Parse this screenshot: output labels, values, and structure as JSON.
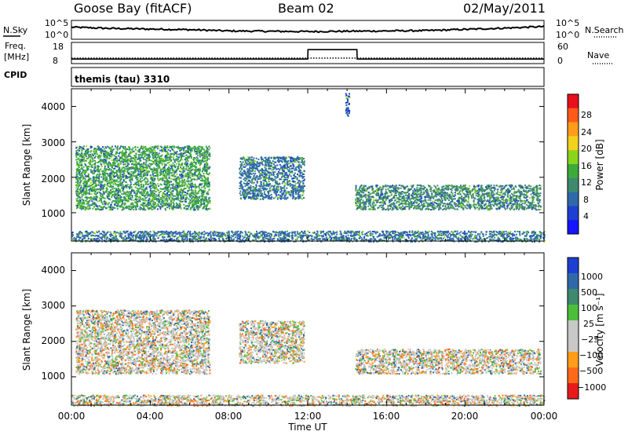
{
  "header": {
    "station": "Goose Bay (fitACF)",
    "beam": "Beam 02",
    "date": "02/May/2011"
  },
  "side_labels": {
    "nsky": "N.Sky",
    "nsearch": "N.Search",
    "freq_line1": "Freq.",
    "freq_line2": "[MHz]",
    "nave": "Nave",
    "cpid": "CPID"
  },
  "cpid_text": "themis (tau) 3310",
  "noise_panel": {
    "left_ticks": [
      "10^5",
      "10^0"
    ],
    "right_ticks": [
      "10^5",
      "10^0"
    ]
  },
  "freq_panel": {
    "left_ticks": [
      "18",
      "8"
    ],
    "right_ticks": [
      "60",
      "0"
    ]
  },
  "x_axis": {
    "label": "Time UT",
    "ticks": [
      "00:00",
      "04:00",
      "08:00",
      "12:00",
      "16:00",
      "20:00",
      "00:00"
    ]
  },
  "power_panel": {
    "ylabel": "Slant Range [km]",
    "yticks": [
      "4000",
      "3000",
      "2000",
      "1000"
    ],
    "colorbar_label": "Power [dB]",
    "colorbar_ticks": [
      "28",
      "24",
      "20",
      "16",
      "12",
      "8",
      "4"
    ],
    "colorbar_colors": [
      "#e8101b",
      "#ff5a1a",
      "#ff9d1a",
      "#f2d21c",
      "#8bd41e",
      "#3cab3a",
      "#3f8a6e",
      "#2f6aa8",
      "#1e3fd2",
      "#1414ff"
    ]
  },
  "velocity_panel": {
    "ylabel": "Slant Range [km]",
    "yticks": [
      "4000",
      "3000",
      "2000",
      "1000"
    ],
    "colorbar_label": "Velocity [m s⁻¹]",
    "colorbar_ticks": [
      "1000",
      "500",
      "100",
      "25",
      "−25",
      "−100",
      "−500",
      "−1000"
    ],
    "colorbar_colors": [
      "#1e3fd2",
      "#2f6aa8",
      "#3f8a6e",
      "#4cbf3a",
      "#c8c8c8",
      "#c8c8c8",
      "#ff9d1a",
      "#ff6a1a",
      "#e81b1b"
    ]
  },
  "chart_data": [
    {
      "type": "line",
      "title": "N.Sky / N.Search",
      "x_unit": "hours UT",
      "x": [
        0,
        2,
        4,
        6,
        8,
        10,
        12,
        14,
        16,
        18,
        20,
        22,
        24
      ],
      "series": [
        {
          "name": "N.Sky",
          "values": [
            3.6,
            3.2,
            3.0,
            2.8,
            2.4,
            2.3,
            2.2,
            2.3,
            2.4,
            2.5,
            2.9,
            3.3,
            3.8
          ]
        }
      ]
    },
    {
      "type": "line",
      "title": "Freq. / Nave",
      "x_unit": "hours UT",
      "x": [
        0,
        12,
        12.01,
        14.5,
        14.51,
        24
      ],
      "series": [
        {
          "name": "Freq.",
          "values": [
            10,
            10,
            15,
            15,
            10,
            10
          ]
        }
      ]
    },
    {
      "type": "heatmap",
      "title": "Power [dB]",
      "xlabel": "Time UT",
      "ylabel": "Slant Range [km]",
      "xlim": [
        0,
        24
      ],
      "ylim": [
        200,
        4500
      ],
      "regions": [
        {
          "t_start": 0.2,
          "t_end": 7.0,
          "range_start": 1100,
          "range_end": 2900,
          "level_dB": 14
        },
        {
          "t_start": 8.5,
          "t_end": 11.8,
          "range_start": 1400,
          "range_end": 2600,
          "level_dB": 8
        },
        {
          "t_start": 14.4,
          "t_end": 23.8,
          "range_start": 1100,
          "range_end": 1800,
          "level_dB": 12
        },
        {
          "t_start": 0.0,
          "t_end": 24.0,
          "range_start": 200,
          "range_end": 500,
          "level_dB": 10
        },
        {
          "t_start": 13.9,
          "t_end": 14.1,
          "range_start": 3700,
          "range_end": 4400,
          "level_dB": 6
        }
      ]
    },
    {
      "type": "heatmap",
      "title": "Velocity [m s⁻¹]",
      "xlabel": "Time UT",
      "ylabel": "Slant Range [km]",
      "xlim": [
        0,
        24
      ],
      "ylim": [
        200,
        4500
      ],
      "regions": [
        {
          "t_start": 0.2,
          "t_end": 7.0,
          "range_start": 1100,
          "range_end": 2900,
          "velocity": 0
        },
        {
          "t_start": 8.5,
          "t_end": 11.8,
          "range_start": 1400,
          "range_end": 2600,
          "velocity": 0
        },
        {
          "t_start": 14.4,
          "t_end": 23.8,
          "range_start": 1100,
          "range_end": 1800,
          "velocity": 0
        },
        {
          "t_start": 0.0,
          "t_end": 24.0,
          "range_start": 200,
          "range_end": 500,
          "velocity": -100
        }
      ]
    }
  ]
}
